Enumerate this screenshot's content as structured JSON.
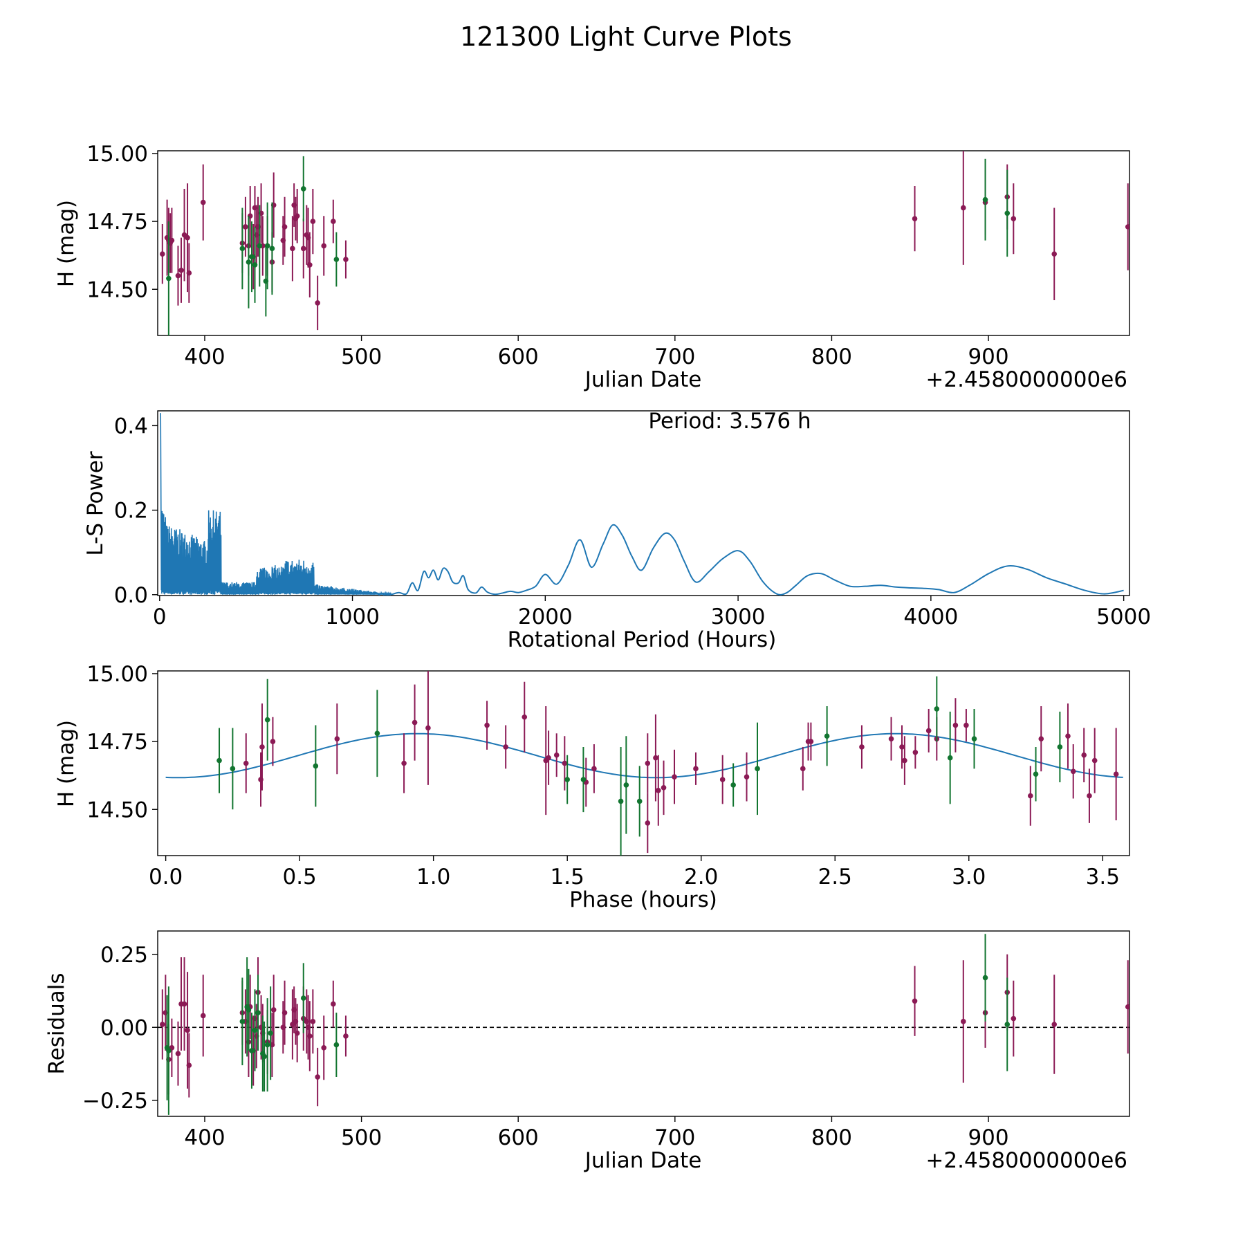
{
  "figure_title": "121300 Light Curve Plots",
  "colors": {
    "obs_purple": "#8b1a55",
    "obs_green": "#127530",
    "curve_blue": "#1f77b4",
    "zero_line": "#000000"
  },
  "chart_data": [
    {
      "id": "lightcurve",
      "type": "scatter",
      "title": "",
      "xlabel": "Julian Date",
      "ylabel": "H (mag)",
      "offset_label": "+2.4580000000e6",
      "xlim": [
        370,
        990
      ],
      "ylim": [
        14.33,
        15.01
      ],
      "xticks": [
        400,
        500,
        600,
        700,
        800,
        900
      ],
      "yticks": [
        14.5,
        14.75,
        15.0
      ],
      "ytick_labels": [
        "14.50",
        "14.75",
        "15.00"
      ],
      "series": [
        {
          "name": "purple",
          "color": "#8b1a55",
          "x": [
            373,
            376,
            377,
            378,
            379,
            383,
            385,
            387,
            389,
            390,
            399,
            424,
            426,
            428,
            429,
            431,
            432,
            433,
            434,
            436,
            437,
            440,
            443,
            444,
            450,
            451,
            456,
            457,
            458,
            459,
            463,
            465,
            466,
            467,
            469,
            472,
            476,
            482,
            490,
            853,
            884,
            898,
            912,
            916,
            942,
            989
          ],
          "y": [
            14.63,
            14.69,
            14.68,
            14.67,
            14.68,
            14.55,
            14.57,
            14.7,
            14.69,
            14.56,
            14.82,
            14.67,
            14.73,
            14.66,
            14.77,
            14.62,
            14.8,
            14.7,
            14.73,
            14.78,
            14.66,
            14.66,
            14.6,
            14.81,
            14.68,
            14.73,
            14.65,
            14.81,
            14.76,
            14.77,
            14.65,
            14.7,
            14.69,
            14.59,
            14.75,
            14.45,
            14.66,
            14.75,
            14.61,
            14.76,
            14.8,
            14.82,
            14.84,
            14.76,
            14.63,
            14.73
          ],
          "err": [
            0.11,
            0.14,
            0.12,
            0.11,
            0.12,
            0.11,
            0.12,
            0.17,
            0.2,
            0.11,
            0.14,
            0.11,
            0.11,
            0.11,
            0.11,
            0.12,
            0.08,
            0.11,
            0.11,
            0.11,
            0.11,
            0.11,
            0.11,
            0.12,
            0.09,
            0.11,
            0.12,
            0.08,
            0.08,
            0.1,
            0.11,
            0.11,
            0.11,
            0.12,
            0.12,
            0.1,
            0.11,
            0.08,
            0.07,
            0.12,
            0.21,
            0.12,
            0.12,
            0.13,
            0.17,
            0.16
          ]
        },
        {
          "name": "green",
          "color": "#127530",
          "x": [
            377,
            424,
            428,
            430,
            432,
            435,
            439,
            440,
            443,
            463,
            484,
            898,
            912
          ],
          "y": [
            14.54,
            14.65,
            14.6,
            14.62,
            14.59,
            14.66,
            14.53,
            14.66,
            14.65,
            14.87,
            14.61,
            14.83,
            14.78
          ],
          "err": [
            0.21,
            0.15,
            0.17,
            0.13,
            0.14,
            0.15,
            0.13,
            0.16,
            0.17,
            0.12,
            0.1,
            0.15,
            0.16
          ]
        }
      ]
    },
    {
      "id": "periodogram",
      "type": "line",
      "xlabel": "Rotational Period (Hours)",
      "ylabel": "L-S Power",
      "annotation": "Period: 3.576 h",
      "xlim": [
        -10,
        5030
      ],
      "ylim": [
        -0.002,
        0.435
      ],
      "xticks": [
        0,
        1000,
        2000,
        3000,
        4000,
        5000
      ],
      "xtick_labels": [
        "0",
        "1000",
        "2000",
        "3000",
        "4000",
        "5000"
      ],
      "yticks": [
        0,
        0.2,
        0.4
      ],
      "ytick_labels": [
        "0.0",
        "0.2",
        "0.4"
      ],
      "series": [
        {
          "name": "L-S power",
          "color": "#1f77b4",
          "x": [
            1200,
            1240,
            1280,
            1310,
            1340,
            1370,
            1395,
            1420,
            1445,
            1470,
            1495,
            1520,
            1550,
            1575,
            1600,
            1640,
            1670,
            1700,
            1740,
            1780,
            1820,
            1860,
            1900,
            1950,
            2000,
            2060,
            2120,
            2180,
            2240,
            2300,
            2350,
            2400,
            2450,
            2500,
            2560,
            2620,
            2670,
            2720,
            2780,
            2850,
            2920,
            3000,
            3060,
            3130,
            3200,
            3250,
            3300,
            3360,
            3430,
            3500,
            3580,
            3660,
            3740,
            3820,
            3900,
            3960,
            4040,
            4120,
            4200,
            4300,
            4400,
            4500,
            4600,
            4700,
            4800,
            4900,
            5000
          ],
          "y": [
            0.0,
            0.005,
            0.002,
            0.028,
            0.01,
            0.055,
            0.04,
            0.058,
            0.035,
            0.062,
            0.055,
            0.03,
            0.028,
            0.045,
            0.012,
            0.004,
            0.018,
            0.006,
            0.001,
            0.004,
            0.008,
            0.005,
            0.01,
            0.02,
            0.048,
            0.025,
            0.07,
            0.13,
            0.065,
            0.12,
            0.165,
            0.14,
            0.09,
            0.058,
            0.11,
            0.145,
            0.13,
            0.08,
            0.03,
            0.055,
            0.085,
            0.104,
            0.08,
            0.03,
            0.002,
            0.004,
            0.022,
            0.045,
            0.05,
            0.035,
            0.02,
            0.02,
            0.022,
            0.018,
            0.016,
            0.015,
            0.012,
            0.005,
            0.022,
            0.05,
            0.068,
            0.06,
            0.04,
            0.025,
            0.01,
            0.002,
            0.01
          ]
        }
      ]
    },
    {
      "id": "phased",
      "type": "scatter",
      "xlabel": "Phase (hours)",
      "ylabel": "H (mag)",
      "xlim": [
        -0.03,
        3.6
      ],
      "ylim": [
        14.33,
        15.01
      ],
      "xticks": [
        0.0,
        0.5,
        1.0,
        1.5,
        2.0,
        2.5,
        3.0,
        3.5
      ],
      "xtick_labels": [
        "0.0",
        "0.5",
        "1.0",
        "1.5",
        "2.0",
        "2.5",
        "3.0",
        "3.5"
      ],
      "yticks": [
        14.5,
        14.75,
        15.0
      ],
      "ytick_labels": [
        "14.50",
        "14.75",
        "15.00"
      ],
      "fit": {
        "color": "#1f77b4",
        "mean": 14.698,
        "amplitude": 0.081,
        "period": 1.788,
        "peak_phase": 0.94
      },
      "series": [
        {
          "name": "purple",
          "color": "#8b1a55",
          "x": [
            0.3,
            0.355,
            0.36,
            0.4,
            0.64,
            0.89,
            0.93,
            0.98,
            1.2,
            1.27,
            1.34,
            1.42,
            1.43,
            1.46,
            1.49,
            1.57,
            1.6,
            1.8,
            1.8,
            1.83,
            1.84,
            1.86,
            1.9,
            1.98,
            2.08,
            2.17,
            2.38,
            2.4,
            2.41,
            2.6,
            2.71,
            2.75,
            2.76,
            2.8,
            2.85,
            2.88,
            2.95,
            2.99,
            3.23,
            3.27,
            3.37,
            3.39,
            3.43,
            3.45,
            3.47,
            3.55
          ],
          "y": [
            14.67,
            14.61,
            14.73,
            14.75,
            14.76,
            14.67,
            14.82,
            14.8,
            14.81,
            14.73,
            14.84,
            14.68,
            14.69,
            14.7,
            14.67,
            14.6,
            14.65,
            14.67,
            14.45,
            14.69,
            14.57,
            14.58,
            14.62,
            14.65,
            14.61,
            14.62,
            14.65,
            14.75,
            14.75,
            14.73,
            14.76,
            14.73,
            14.68,
            14.71,
            14.79,
            14.76,
            14.81,
            14.81,
            14.55,
            14.76,
            14.77,
            14.64,
            14.7,
            14.55,
            14.68,
            14.63
          ],
          "err": [
            0.11,
            0.1,
            0.16,
            0.09,
            0.13,
            0.11,
            0.14,
            0.21,
            0.09,
            0.08,
            0.13,
            0.2,
            0.1,
            0.08,
            0.1,
            0.09,
            0.09,
            0.11,
            0.11,
            0.16,
            0.13,
            0.1,
            0.1,
            0.06,
            0.09,
            0.09,
            0.08,
            0.07,
            0.07,
            0.08,
            0.08,
            0.08,
            0.09,
            0.06,
            0.08,
            0.08,
            0.1,
            0.06,
            0.11,
            0.12,
            0.12,
            0.1,
            0.1,
            0.1,
            0.12,
            0.17
          ]
        },
        {
          "name": "green",
          "color": "#127530",
          "x": [
            0.2,
            0.25,
            0.38,
            0.56,
            0.79,
            1.5,
            1.56,
            1.7,
            1.72,
            1.77,
            2.12,
            2.21,
            2.47,
            2.88,
            2.93,
            3.02,
            3.25,
            3.34
          ],
          "y": [
            14.68,
            14.65,
            14.83,
            14.66,
            14.78,
            14.61,
            14.61,
            14.53,
            14.59,
            14.53,
            14.59,
            14.65,
            14.77,
            14.87,
            14.69,
            14.76,
            14.63,
            14.73
          ],
          "err": [
            0.12,
            0.15,
            0.15,
            0.15,
            0.16,
            0.09,
            0.12,
            0.2,
            0.18,
            0.13,
            0.08,
            0.17,
            0.11,
            0.12,
            0.17,
            0.11,
            0.1,
            0.13
          ]
        }
      ]
    },
    {
      "id": "residuals",
      "type": "scatter",
      "xlabel": "Julian Date",
      "ylabel": "Residuals",
      "offset_label": "+2.4580000000e6",
      "xlim": [
        370,
        990
      ],
      "ylim": [
        -0.305,
        0.33
      ],
      "xticks": [
        400,
        500,
        600,
        700,
        800,
        900
      ],
      "yticks": [
        -0.25,
        0.0,
        0.25
      ],
      "ytick_labels": [
        "−0.25",
        "0.00",
        "0.25"
      ],
      "zero_line": 0,
      "series": [
        {
          "name": "purple",
          "color": "#8b1a55",
          "x": [
            373,
            375,
            377,
            379,
            383,
            385,
            387,
            389,
            390,
            399,
            424,
            426,
            428,
            429,
            431,
            432,
            433,
            434,
            436,
            437,
            440,
            443,
            444,
            450,
            451,
            456,
            457,
            458,
            459,
            463,
            465,
            466,
            467,
            469,
            472,
            476,
            482,
            490,
            853,
            884,
            898,
            912,
            916,
            942,
            989
          ],
          "y": [
            0.01,
            0.05,
            -0.11,
            -0.07,
            -0.09,
            0.08,
            0.08,
            -0.01,
            -0.13,
            0.04,
            0.05,
            0.02,
            -0.05,
            0.07,
            -0.08,
            0.03,
            -0.03,
            0.12,
            0.0,
            -0.02,
            -0.05,
            -0.06,
            0.06,
            0.0,
            0.05,
            0.01,
            0.06,
            0.02,
            -0.02,
            0.03,
            0.02,
            0.0,
            -0.03,
            0.02,
            -0.17,
            -0.07,
            0.08,
            -0.03,
            0.09,
            0.02,
            0.05,
            0.12,
            0.03,
            0.01,
            0.07
          ],
          "err": [
            0.12,
            0.13,
            0.12,
            0.1,
            0.11,
            0.16,
            0.16,
            0.2,
            0.11,
            0.14,
            0.11,
            0.11,
            0.12,
            0.11,
            0.12,
            0.1,
            0.11,
            0.12,
            0.11,
            0.1,
            0.11,
            0.11,
            0.12,
            0.09,
            0.11,
            0.12,
            0.08,
            0.08,
            0.1,
            0.11,
            0.11,
            0.11,
            0.12,
            0.11,
            0.1,
            0.11,
            0.08,
            0.07,
            0.12,
            0.21,
            0.12,
            0.13,
            0.13,
            0.17,
            0.16
          ]
        },
        {
          "name": "green",
          "color": "#127530",
          "x": [
            376,
            377,
            424,
            427,
            428,
            430,
            432,
            434,
            437,
            438,
            440,
            442,
            463,
            484,
            898,
            912
          ],
          "y": [
            -0.07,
            -0.08,
            0.02,
            0.07,
            0.06,
            -0.08,
            -0.01,
            0.05,
            -0.09,
            -0.1,
            -0.06,
            -0.02,
            0.1,
            -0.06,
            0.17,
            0.01
          ],
          "err": [
            0.18,
            0.22,
            0.15,
            0.17,
            0.14,
            0.13,
            0.14,
            0.13,
            0.13,
            0.12,
            0.16,
            0.16,
            0.12,
            0.11,
            0.15,
            0.16
          ]
        }
      ]
    }
  ]
}
